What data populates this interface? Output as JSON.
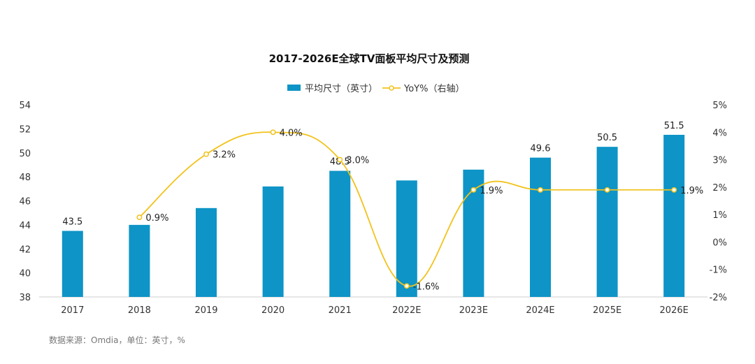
{
  "colors": {
    "bar": "#0e94c6",
    "line": "#f2c21b",
    "axis": "#cfcfcf"
  },
  "chart_data": {
    "type": "bar+line",
    "title": "2017-2026E全球TV面板平均尺寸及预测",
    "categories": [
      "2017",
      "2018",
      "2019",
      "2020",
      "2021",
      "2022E",
      "2023E",
      "2024E",
      "2025E",
      "2026E"
    ],
    "series": [
      {
        "name": "平均尺寸（英寸）",
        "type": "bar",
        "axis": "left",
        "values": [
          43.5,
          44.0,
          45.4,
          47.2,
          48.5,
          47.7,
          48.6,
          49.6,
          50.5,
          51.5
        ],
        "labels": [
          "43.5",
          "",
          "",
          "",
          "48.5",
          "",
          "",
          "49.6",
          "50.5",
          "51.5"
        ]
      },
      {
        "name": "YoY%（右轴）",
        "type": "line",
        "axis": "right",
        "values": [
          null,
          0.9,
          3.2,
          4.0,
          3.0,
          -1.6,
          1.9,
          1.9,
          1.9,
          1.9
        ],
        "labels": [
          "",
          "0.9%",
          "3.2%",
          "4.0%",
          "3.0%",
          "-1.6%",
          "1.9%",
          "",
          "",
          "1.9%"
        ]
      }
    ],
    "y_left": {
      "min": 38,
      "max": 54,
      "ticks": [
        "38",
        "40",
        "42",
        "44",
        "46",
        "48",
        "50",
        "52",
        "54"
      ]
    },
    "y_right": {
      "min": -2,
      "max": 5,
      "ticks": [
        "-2%",
        "-1%",
        "0%",
        "1%",
        "2%",
        "3%",
        "4%",
        "5%"
      ]
    },
    "legend": {
      "position": "top-center",
      "items": [
        "平均尺寸（英寸）",
        "YoY%（右轴）"
      ]
    }
  },
  "footer": {
    "source": "数据来源：Omdia，单位：英寸，%"
  }
}
